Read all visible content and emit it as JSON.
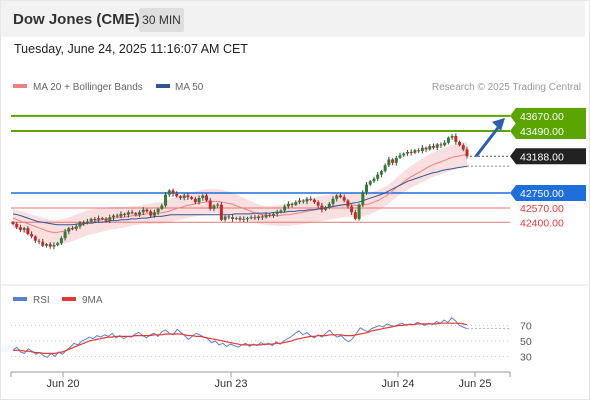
{
  "header": {
    "title": "Dow Jones (CME)",
    "timeframe": "30 MIN"
  },
  "timestamp": "Tuesday, June 24, 2025 11:16:07 AM CET",
  "chart_data": {
    "type": "candlestick",
    "legend": [
      {
        "label": "MA 20 + Bollinger Bands",
        "color": "#f08080"
      },
      {
        "label": "MA 50",
        "color": "#2f5597"
      }
    ],
    "credit": "Research © 2025 Trading Central",
    "price_axis": {
      "min": 41950,
      "max": 43800
    },
    "x_labels": [
      "Jun 20",
      "Jun 23",
      "Jun 24",
      "Jun 25"
    ],
    "last_price": 43188,
    "forecast_arrow": {
      "from": 43188,
      "to": 43670
    },
    "levels": [
      {
        "label": "43670.00",
        "value": 43670,
        "type": "resistance",
        "line_color": "#5aa500",
        "tag_color": "#5aa500",
        "text_color": "#ffffff"
      },
      {
        "label": "43490.00",
        "value": 43490,
        "type": "resistance",
        "line_color": "#5aa500",
        "tag_color": "#5aa500",
        "text_color": "#ffffff"
      },
      {
        "label": "43188.00",
        "value": 43188,
        "type": "last",
        "line_color": "#555555",
        "tag_color": "#222222",
        "text_color": "#ffffff"
      },
      {
        "label": "42750.00",
        "value": 42750,
        "type": "pivot",
        "line_color": "#1e6fd9",
        "tag_color": "#1e6fd9",
        "text_color": "#ffffff"
      },
      {
        "label": "42570.00",
        "value": 42570,
        "type": "support",
        "line_color": "#e57373",
        "tag_color": "",
        "text_color": "#e53935"
      },
      {
        "label": "42400.00",
        "value": 42400,
        "type": "support",
        "line_color": "#e57373",
        "tag_color": "",
        "text_color": "#e53935"
      }
    ],
    "closes": [
      42380,
      42340,
      42310,
      42330,
      42260,
      42230,
      42180,
      42170,
      42120,
      42140,
      42110,
      42130,
      42150,
      42210,
      42290,
      42330,
      42320,
      42350,
      42400,
      42390,
      42410,
      42440,
      42430,
      42450,
      42440,
      42420,
      42460,
      42480,
      42470,
      42500,
      42490,
      42520,
      42510,
      42490,
      42520,
      42550,
      42530,
      42480,
      42520,
      42560,
      42600,
      42730,
      42780,
      42740,
      42710,
      42690,
      42720,
      42700,
      42680,
      42640,
      42690,
      42720,
      42660,
      42560,
      42600,
      42610,
      42430,
      42470,
      42460,
      42440,
      42450,
      42430,
      42440,
      42450,
      42460,
      42450,
      42470,
      42460,
      42490,
      42480,
      42500,
      42520,
      42540,
      42590,
      42620,
      42610,
      42640,
      42660,
      42650,
      42680,
      42670,
      42640,
      42600,
      42550,
      42580,
      42620,
      42680,
      42720,
      42700,
      42660,
      42590,
      42520,
      42440,
      42610,
      42760,
      42850,
      42890,
      42920,
      42970,
      43010,
      43080,
      43150,
      43110,
      43170,
      43200,
      43220,
      43240,
      43230,
      43260,
      43250,
      43290,
      43270,
      43310,
      43290,
      43330,
      43320,
      43350,
      43410,
      43430,
      43360,
      43320,
      43270,
      43188
    ],
    "ma20": [
      42450,
      42430,
      42410,
      42390,
      42370,
      42350,
      42330,
      42310,
      42290,
      42280,
      42280,
      42290,
      42300,
      42320,
      42340,
      42360,
      42380,
      42400,
      42410,
      42420,
      42430,
      42440,
      42450,
      42450,
      42460,
      42460,
      42470,
      42480,
      42480,
      42490,
      42500,
      42500,
      42510,
      42510,
      42520,
      42530,
      42550,
      42570,
      42580,
      42600,
      42610,
      42620,
      42630,
      42640,
      42650,
      42650,
      42650,
      42640,
      42630,
      42620,
      42600,
      42580,
      42560,
      42540,
      42520,
      42500,
      42490,
      42480,
      42480,
      42480,
      42480,
      42490,
      42490,
      42500,
      42510,
      42520,
      42530,
      42540,
      42550,
      42560,
      42570,
      42580,
      42590,
      42600,
      42610,
      42610,
      42610,
      42600,
      42600,
      42610,
      42620,
      42640,
      42660,
      42690,
      42720,
      42760,
      42810,
      42850,
      42890,
      42930,
      42960,
      42990,
      43020,
      43050,
      43080,
      43100,
      43120,
      43140,
      43160,
      43180,
      43190,
      43200,
      43210
    ],
    "ma50": [
      42500,
      42490,
      42470,
      42450,
      42430,
      42410,
      42400,
      42390,
      42380,
      42370,
      42370,
      42370,
      42370,
      42380,
      42380,
      42390,
      42390,
      42400,
      42400,
      42410,
      42420,
      42420,
      42430,
      42430,
      42440,
      42440,
      42450,
      42450,
      42460,
      42470,
      42470,
      42480,
      42490,
      42490,
      42490,
      42490,
      42490,
      42490,
      42490,
      42490,
      42490,
      42490,
      42490,
      42490,
      42490,
      42500,
      42500,
      42500,
      42500,
      42510,
      42510,
      42510,
      42510,
      42520,
      42520,
      42520,
      42530,
      42530,
      42540,
      42540,
      42550,
      42550,
      42560,
      42570,
      42580,
      42590,
      42600,
      42610,
      42620,
      42630,
      42640,
      42660,
      42680,
      42700,
      42720,
      42740,
      42770,
      42800,
      42830,
      42860,
      42890,
      42910,
      42930,
      42950,
      42970,
      42990,
      43000,
      43020,
      43030,
      43040,
      43050,
      43060,
      43070
    ],
    "rsi": {
      "label": "RSI",
      "ma_label": "9MA",
      "color": "#5b7fd6",
      "ma_color": "#e53935",
      "ticks": [
        70,
        50,
        30
      ],
      "range": [
        10,
        90
      ],
      "values": [
        38,
        42,
        36,
        34,
        40,
        37,
        33,
        35,
        31,
        29,
        34,
        30,
        36,
        33,
        38,
        42,
        47,
        45,
        50,
        52,
        55,
        53,
        57,
        55,
        58,
        56,
        60,
        54,
        57,
        53,
        56,
        55,
        59,
        61,
        57,
        54,
        58,
        60,
        56,
        62,
        64,
        60,
        58,
        65,
        61,
        57,
        52,
        56,
        60,
        58,
        55,
        53,
        48,
        50,
        45,
        47,
        43,
        46,
        44,
        42,
        45,
        47,
        43,
        46,
        44,
        48,
        45,
        47,
        44,
        49,
        46,
        50,
        53,
        56,
        60,
        63,
        58,
        61,
        57,
        54,
        58,
        55,
        60,
        64,
        58,
        55,
        57,
        52,
        49,
        53,
        60,
        67,
        64,
        62,
        66,
        68,
        70,
        68,
        72,
        70,
        69,
        71,
        73,
        70,
        72,
        71,
        74,
        72,
        70,
        73,
        71,
        75,
        73,
        77,
        74,
        80,
        76,
        70,
        68,
        66
      ],
      "ma": [
        38,
        38,
        38,
        37,
        37,
        36,
        35,
        35,
        34,
        34,
        34,
        34,
        35,
        36,
        38,
        40,
        42,
        44,
        46,
        48,
        50,
        51,
        52,
        53,
        54,
        55,
        55,
        56,
        56,
        56,
        56,
        56,
        57,
        57,
        57,
        57,
        57,
        58,
        58,
        58,
        59,
        59,
        59,
        59,
        59,
        58,
        57,
        57,
        56,
        56,
        55,
        54,
        53,
        52,
        51,
        50,
        49,
        48,
        47,
        46,
        45,
        45,
        45,
        45,
        45,
        45,
        46,
        46,
        46,
        47,
        47,
        48,
        49,
        50,
        52,
        53,
        54,
        55,
        56,
        56,
        57,
        57,
        57,
        58,
        58,
        58,
        58,
        57,
        57,
        57,
        58,
        59,
        60,
        61,
        63,
        64,
        65,
        66,
        67,
        68,
        69,
        70,
        70,
        71,
        71,
        71,
        72,
        72,
        72,
        72,
        72,
        72,
        73,
        73,
        73,
        73,
        73,
        73,
        72,
        71
      ]
    }
  }
}
